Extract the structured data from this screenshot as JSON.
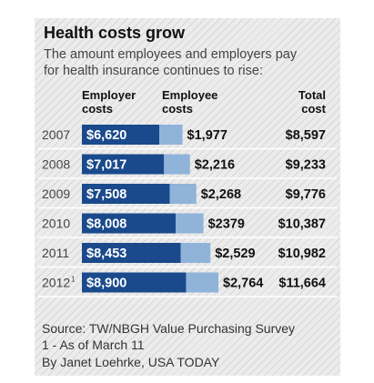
{
  "title": "Health costs grow",
  "subtitle_lines": [
    "The amount employees and employers pay",
    "for health insurance continues to rise:"
  ],
  "headers": {
    "employer": [
      "Employer",
      "costs"
    ],
    "employee": [
      "Employee",
      "costs"
    ],
    "total": [
      "Total",
      "cost"
    ]
  },
  "colors": {
    "employer": "#1a4a8c",
    "employee": "#8fb3d9",
    "background": "#ececec"
  },
  "chart_data": {
    "type": "bar",
    "stacked": true,
    "orientation": "horizontal",
    "categories": [
      "2007",
      "2008",
      "2009",
      "2010",
      "2011",
      "2012"
    ],
    "category_labels": [
      "2007",
      "2008",
      "2009",
      "2010",
      "2011",
      "2012"
    ],
    "category_footnotes": [
      "",
      "",
      "",
      "",
      "",
      "1"
    ],
    "series": [
      {
        "name": "Employer costs",
        "values": [
          6620,
          7017,
          7508,
          8008,
          8453,
          8900
        ],
        "labels": [
          "$6,620",
          "$7,017",
          "$7,508",
          "$8,008",
          "$8,453",
          "$8,900"
        ]
      },
      {
        "name": "Employee costs",
        "values": [
          1977,
          2216,
          2268,
          2379,
          2529,
          2764
        ],
        "labels": [
          "$1,977",
          "$2,216",
          "$2,268",
          "$2379",
          "$2,529",
          "$2,764"
        ]
      }
    ],
    "totals": [
      8597,
      9233,
      9776,
      10387,
      10982,
      11664
    ],
    "total_labels": [
      "$8,597",
      "$9,233",
      "$9,776",
      "$10,387",
      "$10,982",
      "$11,664"
    ]
  },
  "footer": {
    "source": "Source: TW/NBGH Value Purchasing Survey",
    "note": "1 - As of March 11",
    "byline": "By Janet Loehrke, USA TODAY"
  }
}
